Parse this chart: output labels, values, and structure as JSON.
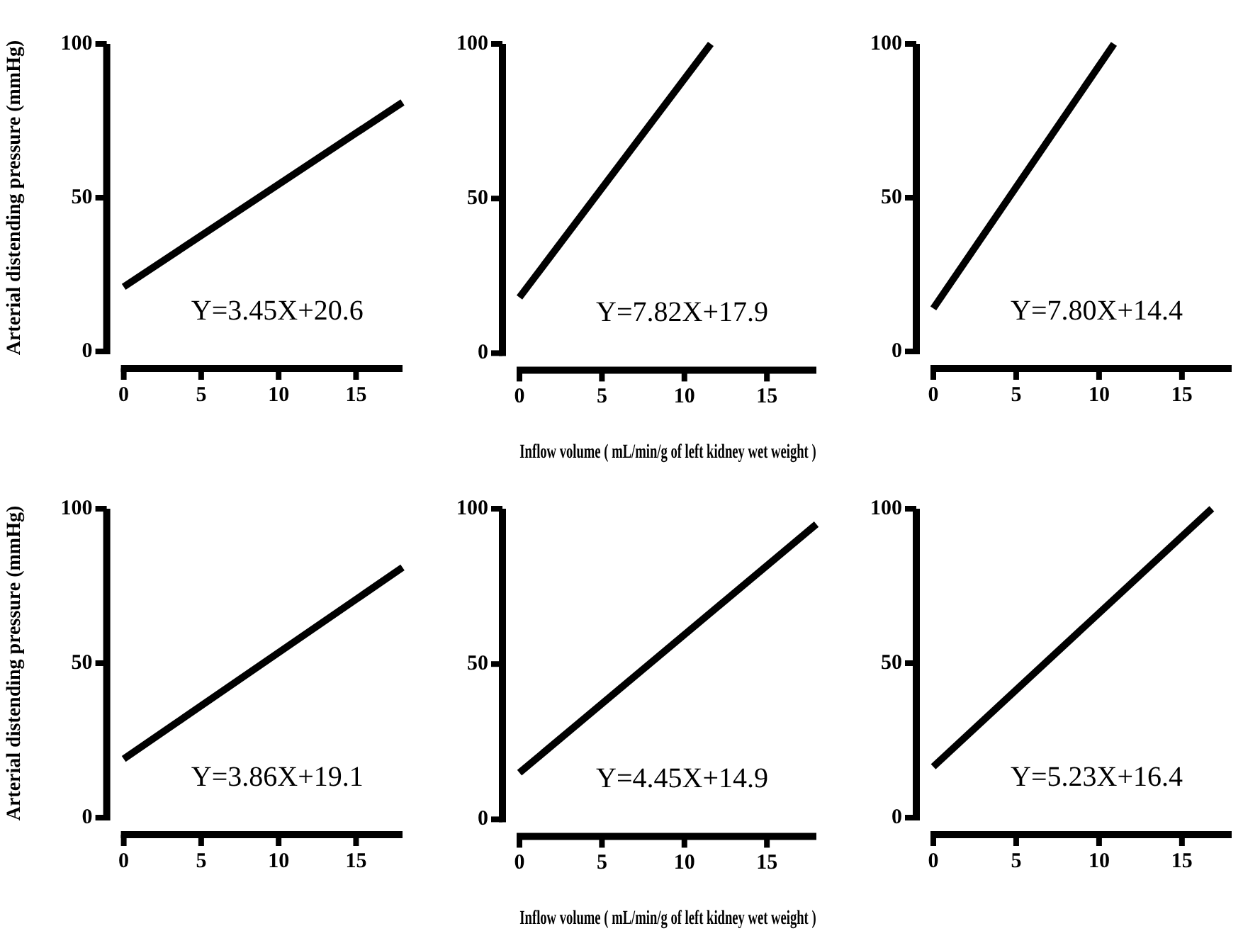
{
  "chart_data": [
    {
      "type": "line",
      "ylabel": "Arterial distending pressure (mmHg)",
      "xlim": [
        0,
        18
      ],
      "xticks": [
        0,
        5,
        10,
        15
      ],
      "ylim": [
        0,
        100
      ],
      "yticks": [
        0,
        50,
        100
      ],
      "marker": "none",
      "annotations": [
        "Y=3.45X+20.6"
      ],
      "series": [
        {
          "color": "#000000",
          "x": [
            0,
            18
          ],
          "values": [
            21,
            81
          ]
        }
      ]
    },
    {
      "type": "line",
      "xlabel": "Inflow volume ( mL/min/g of left kidney wet weight )",
      "xlim": [
        0,
        18
      ],
      "xticks": [
        0,
        5,
        10,
        15
      ],
      "ylim": [
        0,
        100
      ],
      "yticks": [
        0,
        50,
        100
      ],
      "marker": "none",
      "annotations": [
        "Y=7.82X+17.9"
      ],
      "series": [
        {
          "color": "#000000",
          "x": [
            0,
            11.6
          ],
          "values": [
            18,
            100
          ]
        }
      ]
    },
    {
      "type": "line",
      "xlim": [
        0,
        18
      ],
      "xticks": [
        0,
        5,
        10,
        15
      ],
      "ylim": [
        0,
        100
      ],
      "yticks": [
        0,
        50,
        100
      ],
      "marker": "none",
      "annotations": [
        "Y=7.80X+14.4"
      ],
      "series": [
        {
          "color": "#000000",
          "x": [
            0,
            10.9
          ],
          "values": [
            14,
            100
          ]
        }
      ]
    },
    {
      "type": "line",
      "ylabel": "Arterial distending pressure (mmHg)",
      "xlim": [
        0,
        18
      ],
      "xticks": [
        0,
        5,
        10,
        15
      ],
      "ylim": [
        0,
        100
      ],
      "yticks": [
        0,
        50,
        100
      ],
      "marker": "none",
      "annotations": [
        "Y=3.86X+19.1"
      ],
      "series": [
        {
          "color": "#000000",
          "x": [
            0,
            18
          ],
          "values": [
            19,
            81
          ]
        }
      ]
    },
    {
      "type": "line",
      "xlabel": "Inflow volume ( mL/min/g of left kidney wet weight )",
      "xlim": [
        0,
        18
      ],
      "xticks": [
        0,
        5,
        10,
        15
      ],
      "ylim": [
        0,
        100
      ],
      "yticks": [
        0,
        50,
        100
      ],
      "marker": "none",
      "annotations": [
        "Y=4.45X+14.9"
      ],
      "series": [
        {
          "color": "#000000",
          "x": [
            0,
            18
          ],
          "values": [
            15,
            95
          ]
        }
      ]
    },
    {
      "type": "line",
      "xlim": [
        0,
        18
      ],
      "xticks": [
        0,
        5,
        10,
        15
      ],
      "ylim": [
        0,
        100
      ],
      "yticks": [
        0,
        50,
        100
      ],
      "marker": "none",
      "annotations": [
        "Y=5.23X+16.4"
      ],
      "series": [
        {
          "color": "#000000",
          "x": [
            0,
            16.8
          ],
          "values": [
            16.5,
            100
          ]
        }
      ]
    }
  ]
}
